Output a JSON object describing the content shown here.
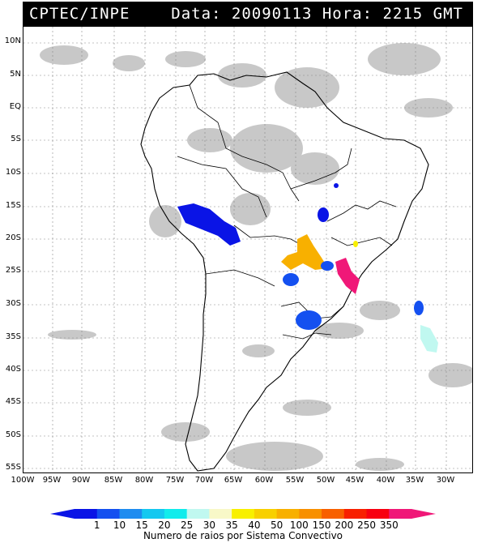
{
  "header": {
    "agency": "CPTEC/INPE",
    "datetime": "Data: 20090113 Hora: 2215 GMT"
  },
  "axes": {
    "lat_labels": [
      "10N",
      "5N",
      "EQ",
      "5S",
      "10S",
      "15S",
      "20S",
      "25S",
      "30S",
      "35S",
      "40S",
      "45S",
      "50S",
      "55S"
    ],
    "lon_labels": [
      "100W",
      "95W",
      "90W",
      "85W",
      "80W",
      "75W",
      "70W",
      "65W",
      "60W",
      "55W",
      "50W",
      "45W",
      "40W",
      "35W",
      "30W"
    ]
  },
  "colorbar": {
    "title": "Numero de raios por Sistema Convectivo",
    "ticks": [
      "1",
      "10",
      "15",
      "20",
      "25",
      "30",
      "35",
      "40",
      "50",
      "100",
      "150",
      "200",
      "250",
      "350"
    ],
    "colors": [
      "#0a14e6",
      "#1450f0",
      "#1e8cf0",
      "#14c8f0",
      "#10ecec",
      "#c0f8f0",
      "#f8f8c8",
      "#f8f000",
      "#f8d000",
      "#f8b000",
      "#f89000",
      "#f86000",
      "#f82000",
      "#f80010",
      "#f01878"
    ]
  }
}
